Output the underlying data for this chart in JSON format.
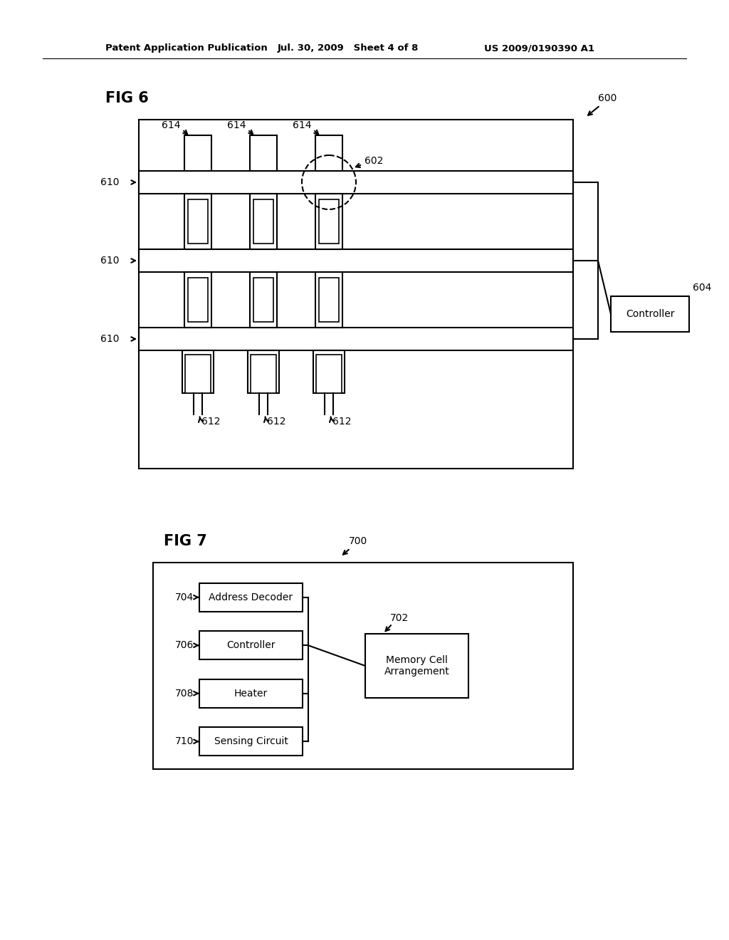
{
  "bg_color": "#ffffff",
  "header_text1": "Patent Application Publication",
  "header_text2": "Jul. 30, 2009   Sheet 4 of 8",
  "header_text3": "US 2009/0190390 A1",
  "fig6_label": "FIG 6",
  "fig7_label": "FIG 7",
  "ref_600": "600",
  "ref_602": "602",
  "ref_604": "604",
  "ref_610_labels": [
    "610",
    "610",
    "610"
  ],
  "ref_612_labels": [
    "612",
    "612",
    "612"
  ],
  "ref_614_labels": [
    "614",
    "614",
    "614"
  ],
  "controller_text": "Controller",
  "ref_700": "700",
  "ref_702": "702",
  "ref_704": "704",
  "ref_706": "706",
  "ref_708": "708",
  "ref_710": "710",
  "block_labels": [
    "Address Decoder",
    "Controller",
    "Heater",
    "Sensing Circuit"
  ],
  "memory_cell_text": "Memory Cell\nArrangement"
}
